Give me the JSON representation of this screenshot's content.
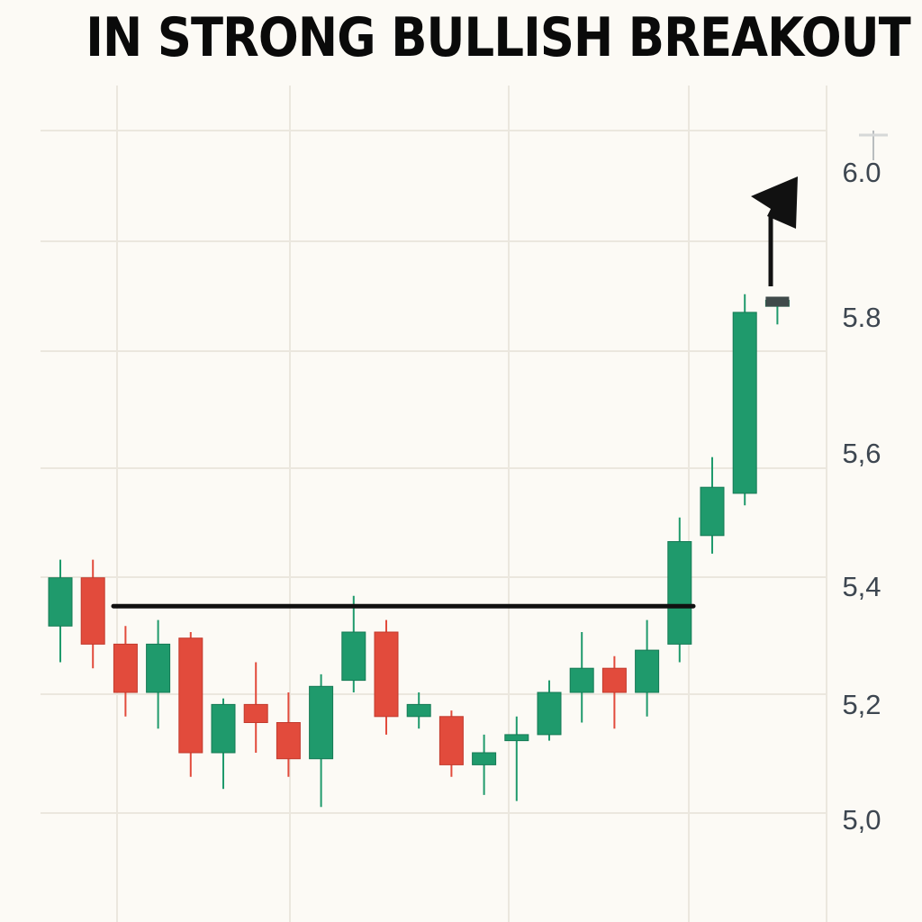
{
  "chart_data": {
    "type": "candlestick",
    "title": "IN STRONG BULLISH BREAKOUT",
    "y_ticks": [
      {
        "value": 5.0,
        "label": "5,0"
      },
      {
        "value": 5.2,
        "label": "5,2"
      },
      {
        "value": 5.4,
        "label": "5,4"
      },
      {
        "value": 5.6,
        "label": "5,6"
      },
      {
        "value": 5.8,
        "label": "5.8"
      },
      {
        "value": 6.0,
        "label": "6.0"
      }
    ],
    "ylim": [
      4.86,
      6.12
    ],
    "grid": true,
    "colors": {
      "up": "#1f9a6c",
      "down": "#e24b3c",
      "line": "#111111",
      "grid": "#ebe7de"
    },
    "resistance_level": 5.343,
    "breakout_arrow": true,
    "candles": [
      {
        "open": 5.31,
        "close": 5.39,
        "high": 5.42,
        "low": 5.25
      },
      {
        "open": 5.39,
        "close": 5.28,
        "high": 5.42,
        "low": 5.24
      },
      {
        "open": 5.28,
        "close": 5.2,
        "high": 5.31,
        "low": 5.16
      },
      {
        "open": 5.2,
        "close": 5.28,
        "high": 5.32,
        "low": 5.14
      },
      {
        "open": 5.29,
        "close": 5.1,
        "high": 5.3,
        "low": 5.06
      },
      {
        "open": 5.1,
        "close": 5.18,
        "high": 5.19,
        "low": 5.04
      },
      {
        "open": 5.18,
        "close": 5.15,
        "high": 5.25,
        "low": 5.1
      },
      {
        "open": 5.15,
        "close": 5.09,
        "high": 5.2,
        "low": 5.06
      },
      {
        "open": 5.09,
        "close": 5.21,
        "high": 5.23,
        "low": 5.01
      },
      {
        "open": 5.22,
        "close": 5.3,
        "high": 5.36,
        "low": 5.2
      },
      {
        "open": 5.3,
        "close": 5.16,
        "high": 5.32,
        "low": 5.13
      },
      {
        "open": 5.16,
        "close": 5.18,
        "high": 5.2,
        "low": 5.14
      },
      {
        "open": 5.16,
        "close": 5.08,
        "high": 5.17,
        "low": 5.06
      },
      {
        "open": 5.08,
        "close": 5.1,
        "high": 5.13,
        "low": 5.03
      },
      {
        "open": 5.12,
        "close": 5.13,
        "high": 5.16,
        "low": 5.02
      },
      {
        "open": 5.13,
        "close": 5.2,
        "high": 5.22,
        "low": 5.12
      },
      {
        "open": 5.2,
        "close": 5.24,
        "high": 5.3,
        "low": 5.15
      },
      {
        "open": 5.24,
        "close": 5.2,
        "high": 5.26,
        "low": 5.14
      },
      {
        "open": 5.2,
        "close": 5.27,
        "high": 5.32,
        "low": 5.16
      },
      {
        "open": 5.28,
        "close": 5.45,
        "high": 5.49,
        "low": 5.25
      },
      {
        "open": 5.46,
        "close": 5.54,
        "high": 5.59,
        "low": 5.43
      },
      {
        "open": 5.53,
        "close": 5.83,
        "high": 5.86,
        "low": 5.51
      },
      {
        "open": 5.84,
        "close": 5.85,
        "high": 5.85,
        "low": 5.81
      }
    ]
  }
}
